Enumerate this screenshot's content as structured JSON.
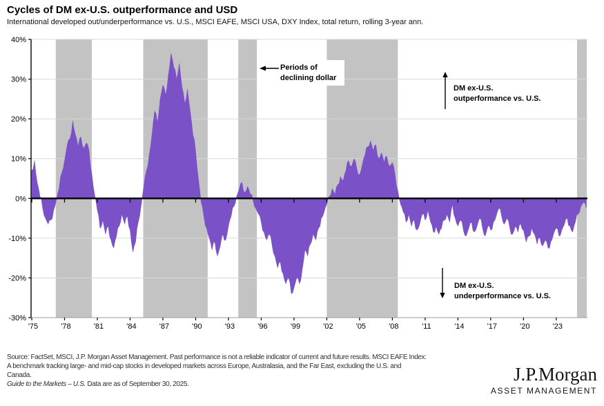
{
  "page": {
    "title": "Cycles of DM ex-U.S. outperformance and USD",
    "subtitle": "International developed out/underperformance vs. U.S., MSCI EAFE, MSCI USA, DXY Index, total return, rolling 3-year ann."
  },
  "annotations": {
    "declining_dollar": {
      "line1": "Periods of",
      "line2": "declining dollar"
    },
    "outperformance": {
      "line1": "DM ex-U.S.",
      "line2": "outperformance vs. U.S."
    },
    "underperformance": {
      "line1": "DM ex-U.S.",
      "line2": "underperformance vs. U.S."
    }
  },
  "footer": {
    "line1": "Source: FactSet, MSCI, J.P. Morgan Asset Management. Past performance is not a reliable indicator of current and future results. MSCI EAFE Index:",
    "line2": "A benchmark tracking large- and mid-cap stocks in developed markets across Europe, Australasia, and the Far East, excluding the U.S. and",
    "line3": "Canada.",
    "gtm_italic": "Guide to the Markets – U.S.",
    "gtm_rest": " Data are as of September 30, 2025."
  },
  "logo": {
    "brand": "J.P.Morgan",
    "division": "ASSET MANAGEMENT"
  },
  "chart_data": {
    "type": "area",
    "title": "Cycles of DM ex-U.S. outperformance and USD",
    "series_name": "DM ex-U.S. out/underperformance vs. U.S., rolling 3-year annualized (%)",
    "unit": "%",
    "ylim": [
      -30,
      40
    ],
    "xlim": [
      1975,
      2025.8
    ],
    "grid": true,
    "y_ticks": [
      {
        "value": 40,
        "label": "40%"
      },
      {
        "value": 30,
        "label": "30%"
      },
      {
        "value": 20,
        "label": "20%"
      },
      {
        "value": 10,
        "label": "10%"
      },
      {
        "value": 0,
        "label": "0%"
      },
      {
        "value": -10,
        "label": "-10%"
      },
      {
        "value": -20,
        "label": "-20%"
      },
      {
        "value": -30,
        "label": "-30%"
      }
    ],
    "x_ticks": [
      {
        "year": 1975,
        "label": "'75"
      },
      {
        "year": 1978,
        "label": "'78"
      },
      {
        "year": 1981,
        "label": "'81"
      },
      {
        "year": 1984,
        "label": "'84"
      },
      {
        "year": 1987,
        "label": "'87"
      },
      {
        "year": 1990,
        "label": "'90"
      },
      {
        "year": 1993,
        "label": "'93"
      },
      {
        "year": 1996,
        "label": "'96"
      },
      {
        "year": 1999,
        "label": "'99"
      },
      {
        "year": 2002,
        "label": "'02"
      },
      {
        "year": 2005,
        "label": "'05"
      },
      {
        "year": 2008,
        "label": "'08"
      },
      {
        "year": 2011,
        "label": "'11"
      },
      {
        "year": 2014,
        "label": "'14"
      },
      {
        "year": 2017,
        "label": "'17"
      },
      {
        "year": 2020,
        "label": "'20"
      },
      {
        "year": 2023,
        "label": "'23"
      }
    ],
    "x_start": 1975.0,
    "x_step": 0.25,
    "values": [
      7.0,
      9.5,
      4.0,
      0.5,
      -2.5,
      -5.0,
      -6.5,
      -5.5,
      -3.0,
      -0.5,
      2.5,
      6.5,
      9.5,
      13.5,
      15.0,
      19.5,
      16.0,
      13.0,
      15.5,
      12.5,
      14.0,
      12.0,
      6.0,
      1.0,
      -3.0,
      -7.5,
      -5.5,
      -9.0,
      -7.0,
      -10.5,
      -12.5,
      -9.5,
      -7.0,
      -4.0,
      -6.5,
      -4.5,
      -8.0,
      -13.5,
      -11.0,
      -6.0,
      -2.0,
      3.0,
      7.0,
      11.0,
      16.0,
      22.0,
      19.0,
      25.0,
      28.5,
      26.0,
      31.0,
      36.5,
      33.0,
      30.0,
      34.0,
      28.0,
      24.0,
      27.5,
      22.0,
      16.0,
      12.0,
      5.0,
      -1.0,
      -4.5,
      -7.5,
      -10.0,
      -13.0,
      -11.0,
      -14.5,
      -12.0,
      -9.0,
      -10.5,
      -7.0,
      -4.5,
      -2.0,
      0.5,
      2.5,
      4.0,
      1.5,
      3.0,
      1.0,
      -0.5,
      -2.5,
      -4.0,
      -6.0,
      -8.5,
      -10.5,
      -9.0,
      -12.0,
      -14.5,
      -17.5,
      -16.0,
      -19.0,
      -21.5,
      -20.0,
      -24.0,
      -22.5,
      -20.0,
      -21.5,
      -18.0,
      -13.0,
      -14.5,
      -11.5,
      -9.0,
      -10.5,
      -7.5,
      -5.0,
      -3.5,
      -1.5,
      0.5,
      2.5,
      1.0,
      3.5,
      5.5,
      4.5,
      7.0,
      9.5,
      8.0,
      10.0,
      7.5,
      6.0,
      8.5,
      11.0,
      13.0,
      14.5,
      12.0,
      13.5,
      10.0,
      11.5,
      9.0,
      10.5,
      8.0,
      9.0,
      6.0,
      2.0,
      -1.5,
      -3.5,
      -6.0,
      -4.0,
      -7.0,
      -5.5,
      -8.0,
      -6.5,
      -4.0,
      -5.5,
      -3.0,
      -6.0,
      -8.5,
      -7.0,
      -9.0,
      -7.5,
      -5.5,
      -4.0,
      -6.0,
      -1.5,
      -5.0,
      -7.0,
      -5.5,
      -8.0,
      -9.5,
      -7.5,
      -6.0,
      -8.5,
      -7.0,
      -5.0,
      -7.5,
      -9.5,
      -7.0,
      -8.0,
      -6.0,
      -4.5,
      -2.5,
      -4.5,
      -6.5,
      -5.0,
      -7.5,
      -9.0,
      -7.0,
      -8.5,
      -6.5,
      -8.0,
      -11.0,
      -9.5,
      -7.5,
      -9.0,
      -11.5,
      -10.0,
      -12.0,
      -10.5,
      -12.5,
      -11.0,
      -9.0,
      -7.5,
      -9.5,
      -8.0,
      -6.5,
      -5.0,
      -7.0,
      -8.5,
      -6.0,
      -4.0,
      -2.0,
      -1.0,
      -2.5
    ],
    "decline_bands": [
      [
        1977.2,
        1980.5
      ],
      [
        1985.2,
        1991.1
      ],
      [
        1993.9,
        1995.6
      ],
      [
        2002.0,
        2008.5
      ],
      [
        2024.9,
        2025.8
      ]
    ],
    "colors": {
      "area": "#7A51C7",
      "band": "#C3C3C3",
      "grid": "#D8D8D8",
      "axis": "#000000"
    }
  }
}
